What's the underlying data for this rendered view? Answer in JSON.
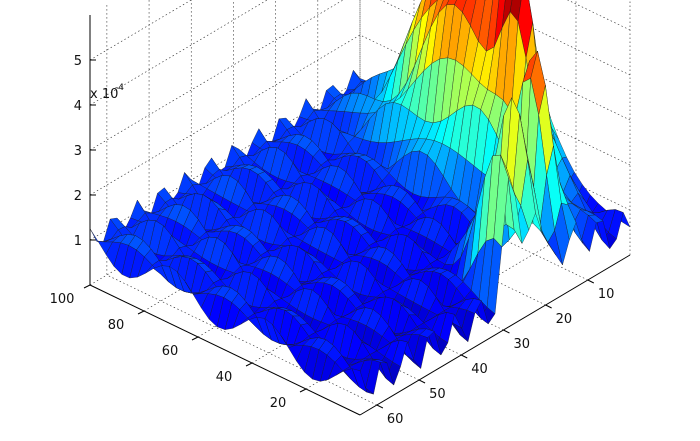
{
  "chart_data": {
    "type": "surface",
    "title": "",
    "xlabel": "",
    "ylabel": "",
    "zlabel": "",
    "z_scale_label": "x 10",
    "z_scale_exponent": "-4",
    "x_ticks": [
      "10",
      "20",
      "30",
      "40",
      "50",
      "60"
    ],
    "y_ticks": [
      "20",
      "40",
      "60",
      "80",
      "100"
    ],
    "z_ticks": [
      "1",
      "2",
      "3",
      "4",
      "5"
    ],
    "xlim": [
      0,
      64
    ],
    "ylim": [
      0,
      100
    ],
    "zlim": [
      0,
      0.0006
    ],
    "grid": true,
    "colormap": "jet",
    "peaks": [
      {
        "x": 3,
        "y": 52,
        "z": 0.00058
      },
      {
        "x": 8,
        "y": 28,
        "z": 0.00042
      },
      {
        "x": 15,
        "y": 12,
        "z": 0.00047
      },
      {
        "x": 22,
        "y": 8,
        "z": 0.00045
      },
      {
        "x": 28,
        "y": 4,
        "z": 0.0004
      }
    ],
    "baseline_z": 0.0001
  }
}
